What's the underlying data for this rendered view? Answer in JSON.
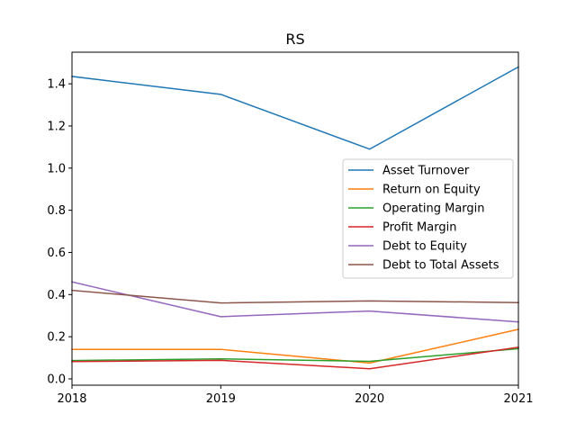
{
  "chart_data": {
    "type": "line",
    "title": "RS",
    "xlabel": "",
    "ylabel": "",
    "x": [
      2018,
      2019,
      2020,
      2021
    ],
    "xlim": [
      2018,
      2021
    ],
    "ylim": [
      -0.03,
      1.55
    ],
    "xticks": [
      "2018",
      "2019",
      "2020",
      "2021"
    ],
    "yticks": [
      "0.0",
      "0.2",
      "0.4",
      "0.6",
      "0.8",
      "1.0",
      "1.2",
      "1.4"
    ],
    "grid": false,
    "legend_position": "center-right",
    "series": [
      {
        "name": "Asset Turnover",
        "color": "#1f77b4",
        "values": [
          1.435,
          1.35,
          1.09,
          1.48
        ]
      },
      {
        "name": "Return on Equity",
        "color": "#ff7f0e",
        "values": [
          0.14,
          0.14,
          0.075,
          0.235
        ]
      },
      {
        "name": "Operating Margin",
        "color": "#2ca02c",
        "values": [
          0.087,
          0.095,
          0.083,
          0.143
        ]
      },
      {
        "name": "Profit Margin",
        "color": "#d62728",
        "values": [
          0.082,
          0.088,
          0.048,
          0.15
        ]
      },
      {
        "name": "Debt to Equity",
        "color": "#9467bd",
        "values": [
          0.46,
          0.295,
          0.322,
          0.27
        ]
      },
      {
        "name": "Debt to Total Assets",
        "color": "#8c564b",
        "values": [
          0.42,
          0.36,
          0.37,
          0.362
        ]
      }
    ]
  }
}
